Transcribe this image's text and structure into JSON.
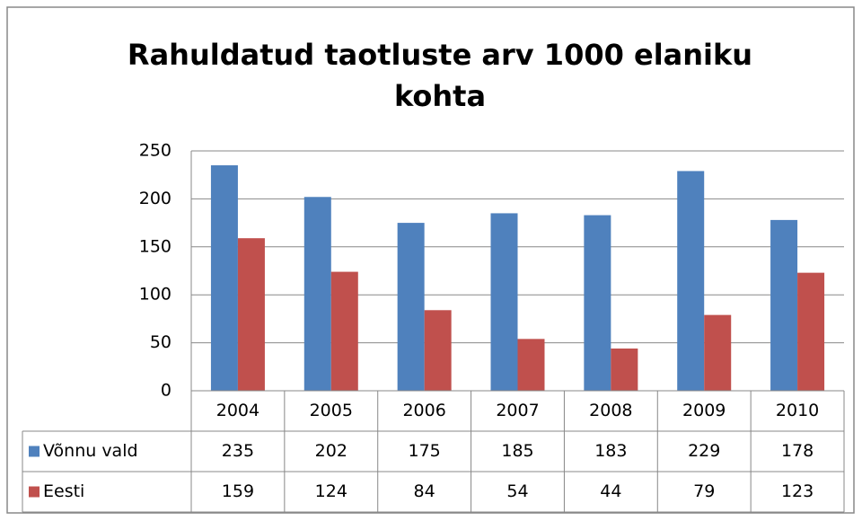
{
  "chart_data": {
    "type": "bar",
    "title": "Rahuldatud taotluste arv 1000 elaniku kohta",
    "categories": [
      "2004",
      "2005",
      "2006",
      "2007",
      "2008",
      "2009",
      "2010"
    ],
    "series": [
      {
        "name": "Võnnu vald",
        "color": "#4f81bd",
        "values": [
          235,
          202,
          175,
          185,
          183,
          229,
          178
        ]
      },
      {
        "name": "Eesti",
        "color": "#c0504d",
        "values": [
          159,
          124,
          84,
          54,
          44,
          79,
          123
        ]
      }
    ],
    "ylim": [
      0,
      250
    ],
    "yticks": [
      0,
      50,
      100,
      150,
      200,
      250
    ],
    "grid": true,
    "data_table": true
  }
}
